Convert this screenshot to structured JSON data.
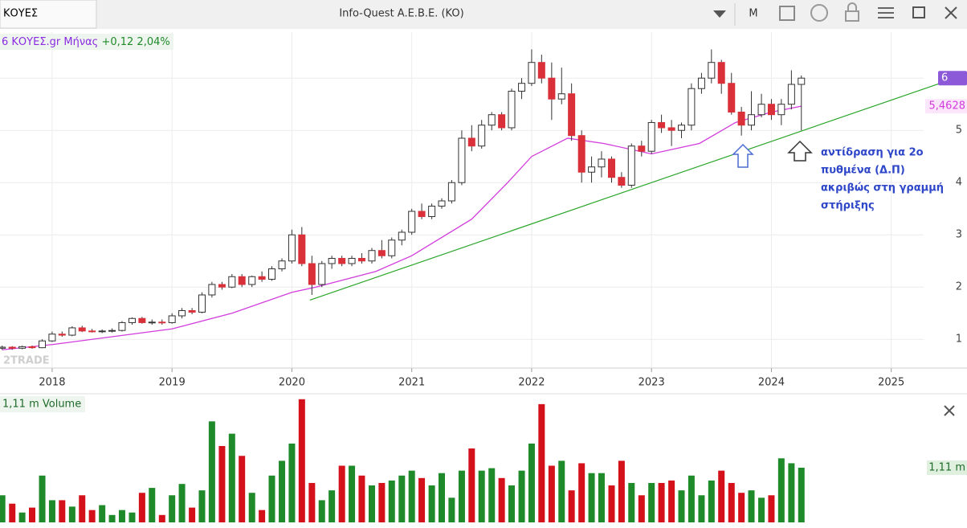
{
  "toolbar": {
    "symbol": "ΚΟΥΕΣ",
    "title": "Info-Quest  A.E.B.E. (KO)",
    "period": "M"
  },
  "chart_data": [
    {
      "type": "candlestick",
      "legend": "6 ΚΟΥΕΣ.gr Μήνας",
      "change": "+0,12 2,04%",
      "watermark": "2TRADE",
      "annotation": [
        "αντίδραση για 2ο",
        "πυθμένα (Δ.Π)",
        "ακριβώς στη γραμμή",
        "στήριξης"
      ],
      "x": [
        2017.583,
        2017.667,
        2017.75,
        2017.833,
        2017.917,
        2018.0,
        2018.083,
        2018.167,
        2018.25,
        2018.333,
        2018.417,
        2018.5,
        2018.583,
        2018.667,
        2018.75,
        2018.833,
        2018.917,
        2019.0,
        2019.083,
        2019.167,
        2019.25,
        2019.333,
        2019.417,
        2019.5,
        2019.583,
        2019.667,
        2019.75,
        2019.833,
        2019.917,
        2020.0,
        2020.083,
        2020.167,
        2020.25,
        2020.333,
        2020.417,
        2020.5,
        2020.583,
        2020.667,
        2020.75,
        2020.833,
        2020.917,
        2021.0,
        2021.083,
        2021.167,
        2021.25,
        2021.333,
        2021.417,
        2021.5,
        2021.583,
        2021.667,
        2021.75,
        2021.833,
        2021.917,
        2022.0,
        2022.083,
        2022.167,
        2022.25,
        2022.333,
        2022.417,
        2022.5,
        2022.583,
        2022.667,
        2022.75,
        2022.833,
        2022.917,
        2023.0,
        2023.083,
        2023.167,
        2023.25,
        2023.333,
        2023.417,
        2023.5,
        2023.583,
        2023.667,
        2023.75,
        2023.833,
        2023.917,
        2024.0,
        2024.083,
        2024.167,
        2024.25
      ],
      "open": [
        0.83,
        0.85,
        0.83,
        0.86,
        0.84,
        0.97,
        1.1,
        1.08,
        1.22,
        1.16,
        1.15,
        1.16,
        1.17,
        1.32,
        1.4,
        1.32,
        1.33,
        1.32,
        1.45,
        1.55,
        1.52,
        1.85,
        2.05,
        2.0,
        2.2,
        2.05,
        2.2,
        2.15,
        2.35,
        2.5,
        3.0,
        2.45,
        2.05,
        2.45,
        2.55,
        2.45,
        2.55,
        2.5,
        2.7,
        2.6,
        2.9,
        3.05,
        3.45,
        3.35,
        3.55,
        3.65,
        4.0,
        4.85,
        4.7,
        5.1,
        5.3,
        5.05,
        5.75,
        5.9,
        6.3,
        6.0,
        5.6,
        5.7,
        4.9,
        4.2,
        4.3,
        4.45,
        4.1,
        3.95,
        4.7,
        4.6,
        5.15,
        5.05,
        5.0,
        5.1,
        5.8,
        6.0,
        6.3,
        5.9,
        5.35,
        5.1,
        5.3,
        5.5,
        5.3,
        5.5,
        5.88
      ],
      "high": [
        0.88,
        0.87,
        0.88,
        0.88,
        1.0,
        1.15,
        1.15,
        1.25,
        1.26,
        1.2,
        1.19,
        1.21,
        1.35,
        1.42,
        1.43,
        1.38,
        1.38,
        1.5,
        1.6,
        1.6,
        1.9,
        2.1,
        2.1,
        2.25,
        2.25,
        2.22,
        2.3,
        2.4,
        2.55,
        3.1,
        3.15,
        2.6,
        2.5,
        2.6,
        2.6,
        2.6,
        2.65,
        2.75,
        2.9,
        2.95,
        3.1,
        3.5,
        3.6,
        3.6,
        3.7,
        4.05,
        5.0,
        5.1,
        5.2,
        5.35,
        5.35,
        5.8,
        6.0,
        6.55,
        6.45,
        6.3,
        6.2,
        5.9,
        5.0,
        4.5,
        4.6,
        4.5,
        4.2,
        4.75,
        4.8,
        5.2,
        5.3,
        5.2,
        5.15,
        5.9,
        6.1,
        6.55,
        6.35,
        6.1,
        5.45,
        5.75,
        5.7,
        5.6,
        5.6,
        6.15,
        6.05
      ],
      "low": [
        0.8,
        0.8,
        0.81,
        0.82,
        0.83,
        0.95,
        1.05,
        1.06,
        1.14,
        1.13,
        1.12,
        1.13,
        1.15,
        1.28,
        1.3,
        1.28,
        1.28,
        1.3,
        1.4,
        1.48,
        1.5,
        1.8,
        1.95,
        1.98,
        2.0,
        2.0,
        2.1,
        2.12,
        2.3,
        2.45,
        2.4,
        1.85,
        2.0,
        2.35,
        2.4,
        2.4,
        2.45,
        2.45,
        2.55,
        2.55,
        2.8,
        3.0,
        3.3,
        3.3,
        3.5,
        3.6,
        3.95,
        4.6,
        4.65,
        5.0,
        5.0,
        5.0,
        5.6,
        5.85,
        5.9,
        5.2,
        5.5,
        4.8,
        4.0,
        4.0,
        4.1,
        4.0,
        3.9,
        3.9,
        4.5,
        4.55,
        4.95,
        4.7,
        4.85,
        5.0,
        5.7,
        5.9,
        5.7,
        5.3,
        4.9,
        5.0,
        5.25,
        5.2,
        5.1,
        5.4,
        5.0
      ],
      "close": [
        0.85,
        0.83,
        0.86,
        0.84,
        0.97,
        1.1,
        1.08,
        1.22,
        1.16,
        1.15,
        1.16,
        1.17,
        1.32,
        1.4,
        1.32,
        1.33,
        1.32,
        1.45,
        1.55,
        1.52,
        1.85,
        2.05,
        2.0,
        2.2,
        2.05,
        2.2,
        2.15,
        2.35,
        2.5,
        3.0,
        2.45,
        2.05,
        2.45,
        2.55,
        2.45,
        2.55,
        2.5,
        2.7,
        2.6,
        2.9,
        3.05,
        3.45,
        3.35,
        3.55,
        3.65,
        4.0,
        4.85,
        4.7,
        5.1,
        5.3,
        5.05,
        5.75,
        5.9,
        6.3,
        6.0,
        5.6,
        5.7,
        4.9,
        4.2,
        4.3,
        4.45,
        4.1,
        3.95,
        4.7,
        4.6,
        5.15,
        5.05,
        5.0,
        5.1,
        5.8,
        6.0,
        6.3,
        5.9,
        5.35,
        5.1,
        5.3,
        5.5,
        5.3,
        5.5,
        5.88,
        6
      ],
      "up_color": "#ffffff",
      "down_color": "#d9303a",
      "ma": {
        "color": "#d23cdc",
        "last_label": "5,4628",
        "x": [
          2017.583,
          2018.0,
          2018.5,
          2019.0,
          2019.5,
          2020.0,
          2020.2,
          2020.7,
          2021.0,
          2021.5,
          2021.8,
          2022.0,
          2022.3,
          2022.6,
          2023.0,
          2023.4,
          2023.7,
          2024.0,
          2024.25
        ],
        "values": [
          0.8,
          0.9,
          1.05,
          1.2,
          1.5,
          1.9,
          2.0,
          2.3,
          2.6,
          3.3,
          4.0,
          4.5,
          4.85,
          4.75,
          4.55,
          4.75,
          5.15,
          5.35,
          5.4628
        ]
      },
      "support": {
        "color": "#2aa52a",
        "x": [
          2020.15,
          2025.47
        ],
        "values": [
          1.75,
          5.95
        ]
      },
      "xlim": [
        2017.565,
        2025.27
      ],
      "xticks": [
        2018,
        2019,
        2020,
        2021,
        2022,
        2023,
        2024,
        2025
      ],
      "ylim": [
        0.45,
        6.88
      ],
      "yticks": [
        1,
        2,
        3,
        4,
        5,
        6
      ],
      "grid": true
    },
    {
      "type": "bar",
      "title": "1,11 m Volume",
      "values": [
        0.55,
        0.38,
        0.2,
        0.3,
        0.95,
        0.45,
        0.45,
        0.32,
        0.55,
        0.25,
        0.35,
        0.15,
        0.25,
        0.2,
        0.6,
        0.7,
        0.15,
        0.55,
        0.78,
        0.3,
        0.65,
        2.05,
        1.55,
        1.8,
        1.35,
        0.6,
        0.25,
        0.95,
        1.25,
        1.6,
        2.5,
        0.8,
        0.45,
        0.65,
        1.15,
        1.15,
        0.95,
        0.75,
        0.8,
        0.85,
        0.95,
        1.05,
        0.9,
        0.75,
        1.0,
        0.5,
        1.05,
        1.5,
        1.05,
        1.1,
        0.9,
        0.75,
        1.05,
        1.6,
        2.4,
        1.15,
        1.25,
        0.65,
        1.2,
        1.0,
        1.0,
        0.75,
        1.25,
        0.8,
        0.55,
        0.8,
        0.8,
        0.85,
        0.65,
        0.95,
        0.55,
        0.85,
        1.05,
        0.8,
        0.6,
        0.65,
        0.5,
        0.55,
        1.3,
        1.2,
        1.11
      ],
      "last_label": "1,11 m",
      "up_color": "#1f8a2a",
      "down_color": "#d4101a",
      "ylim": [
        0,
        2.61
      ]
    }
  ]
}
